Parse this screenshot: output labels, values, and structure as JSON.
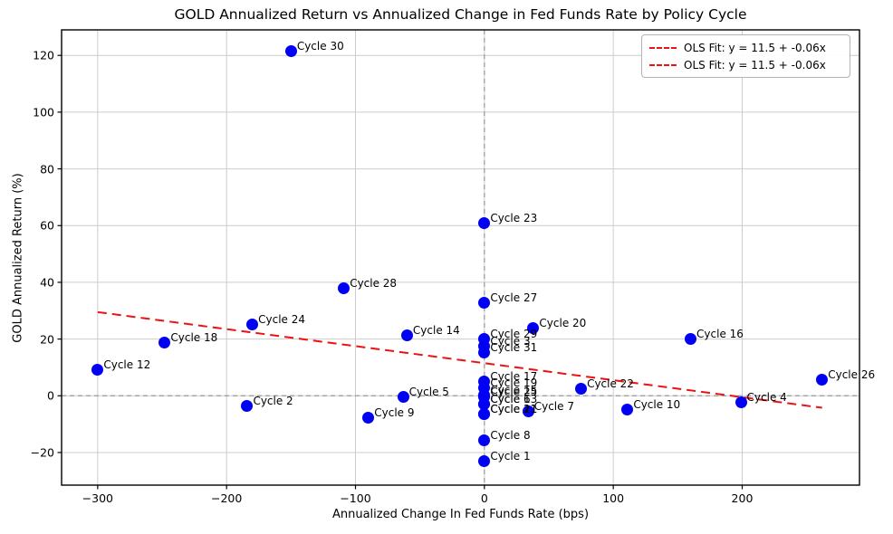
{
  "chart_data": {
    "type": "scatter",
    "title": "GOLD Annualized Return vs Annualized Change in Fed Funds Rate by Policy Cycle",
    "xlabel": "Annualized Change In Fed Funds Rate (bps)",
    "ylabel": "GOLD Annualized Return (%)",
    "xlim": [
      -328,
      291
    ],
    "ylim": [
      -31.5,
      129
    ],
    "x_ticks": [
      -300,
      -200,
      -100,
      0,
      100,
      200
    ],
    "y_ticks": [
      -20,
      0,
      20,
      40,
      60,
      80,
      100,
      120
    ],
    "grid": true,
    "zero_reference_lines": "dashed at x=0 and y=0",
    "legend": {
      "position": "top-right",
      "entries": [
        "OLS Fit: y = 11.5 + -0.06x",
        "OLS Fit: y = 11.5 + -0.06x"
      ]
    },
    "fit_line": {
      "label": "OLS Fit: y = 11.5 + -0.06x",
      "intercept": 11.5,
      "slope": -0.06,
      "x_start": -300,
      "x_end": 262,
      "color": "#ee1111"
    },
    "colors": {
      "point": "#0000f5",
      "grid": "#cccccc",
      "zero_line": "#999999",
      "frame": "#000000"
    },
    "points": [
      {
        "label": "Cycle 1",
        "x": 0,
        "y": -23.2
      },
      {
        "label": "Cycle 2",
        "x": -184,
        "y": -3.5
      },
      {
        "label": "Cycle 3",
        "x": 0,
        "y": 17.5
      },
      {
        "label": "Cycle 4",
        "x": 199,
        "y": -2.4
      },
      {
        "label": "Cycle 5",
        "x": -63,
        "y": -0.3
      },
      {
        "label": "Cycle 6",
        "x": 0,
        "y": -2.9
      },
      {
        "label": "Cycle 7",
        "x": 34,
        "y": -5.6
      },
      {
        "label": "Cycle 8",
        "x": 0,
        "y": -15.7
      },
      {
        "label": "Cycle 9",
        "x": -90,
        "y": -7.8
      },
      {
        "label": "Cycle 10",
        "x": 111,
        "y": -4.9
      },
      {
        "label": "Cycle 11",
        "x": 0,
        "y": -6.6
      },
      {
        "label": "Cycle 12",
        "x": -300,
        "y": 9.1
      },
      {
        "label": "Cycle 13",
        "x": 0,
        "y": -2.9
      },
      {
        "label": "Cycle 14",
        "x": -60,
        "y": 21.3
      },
      {
        "label": "Cycle 15",
        "x": 0,
        "y": 0.1
      },
      {
        "label": "Cycle 16",
        "x": 160,
        "y": 20.1
      },
      {
        "label": "Cycle 17",
        "x": 0,
        "y": 5.0
      },
      {
        "label": "Cycle 18",
        "x": -248,
        "y": 18.8
      },
      {
        "label": "Cycle 19",
        "x": 0,
        "y": 2.9
      },
      {
        "label": "Cycle 20",
        "x": 38,
        "y": 23.9
      },
      {
        "label": "Cycle 21",
        "x": 0,
        "y": -6.6
      },
      {
        "label": "Cycle 22",
        "x": 75,
        "y": 2.6
      },
      {
        "label": "Cycle 23",
        "x": 0,
        "y": 60.8
      },
      {
        "label": "Cycle 24",
        "x": -180,
        "y": 25.0
      },
      {
        "label": "Cycle 25",
        "x": 0,
        "y": -0.3
      },
      {
        "label": "Cycle 26",
        "x": 262,
        "y": 5.6
      },
      {
        "label": "Cycle 27",
        "x": 0,
        "y": 32.9
      },
      {
        "label": "Cycle 28",
        "x": -109,
        "y": 37.9
      },
      {
        "label": "Cycle 29",
        "x": 0,
        "y": 20.0
      },
      {
        "label": "Cycle 30",
        "x": -150,
        "y": 121.5
      },
      {
        "label": "Cycle 31",
        "x": 0,
        "y": 15.4
      }
    ]
  }
}
